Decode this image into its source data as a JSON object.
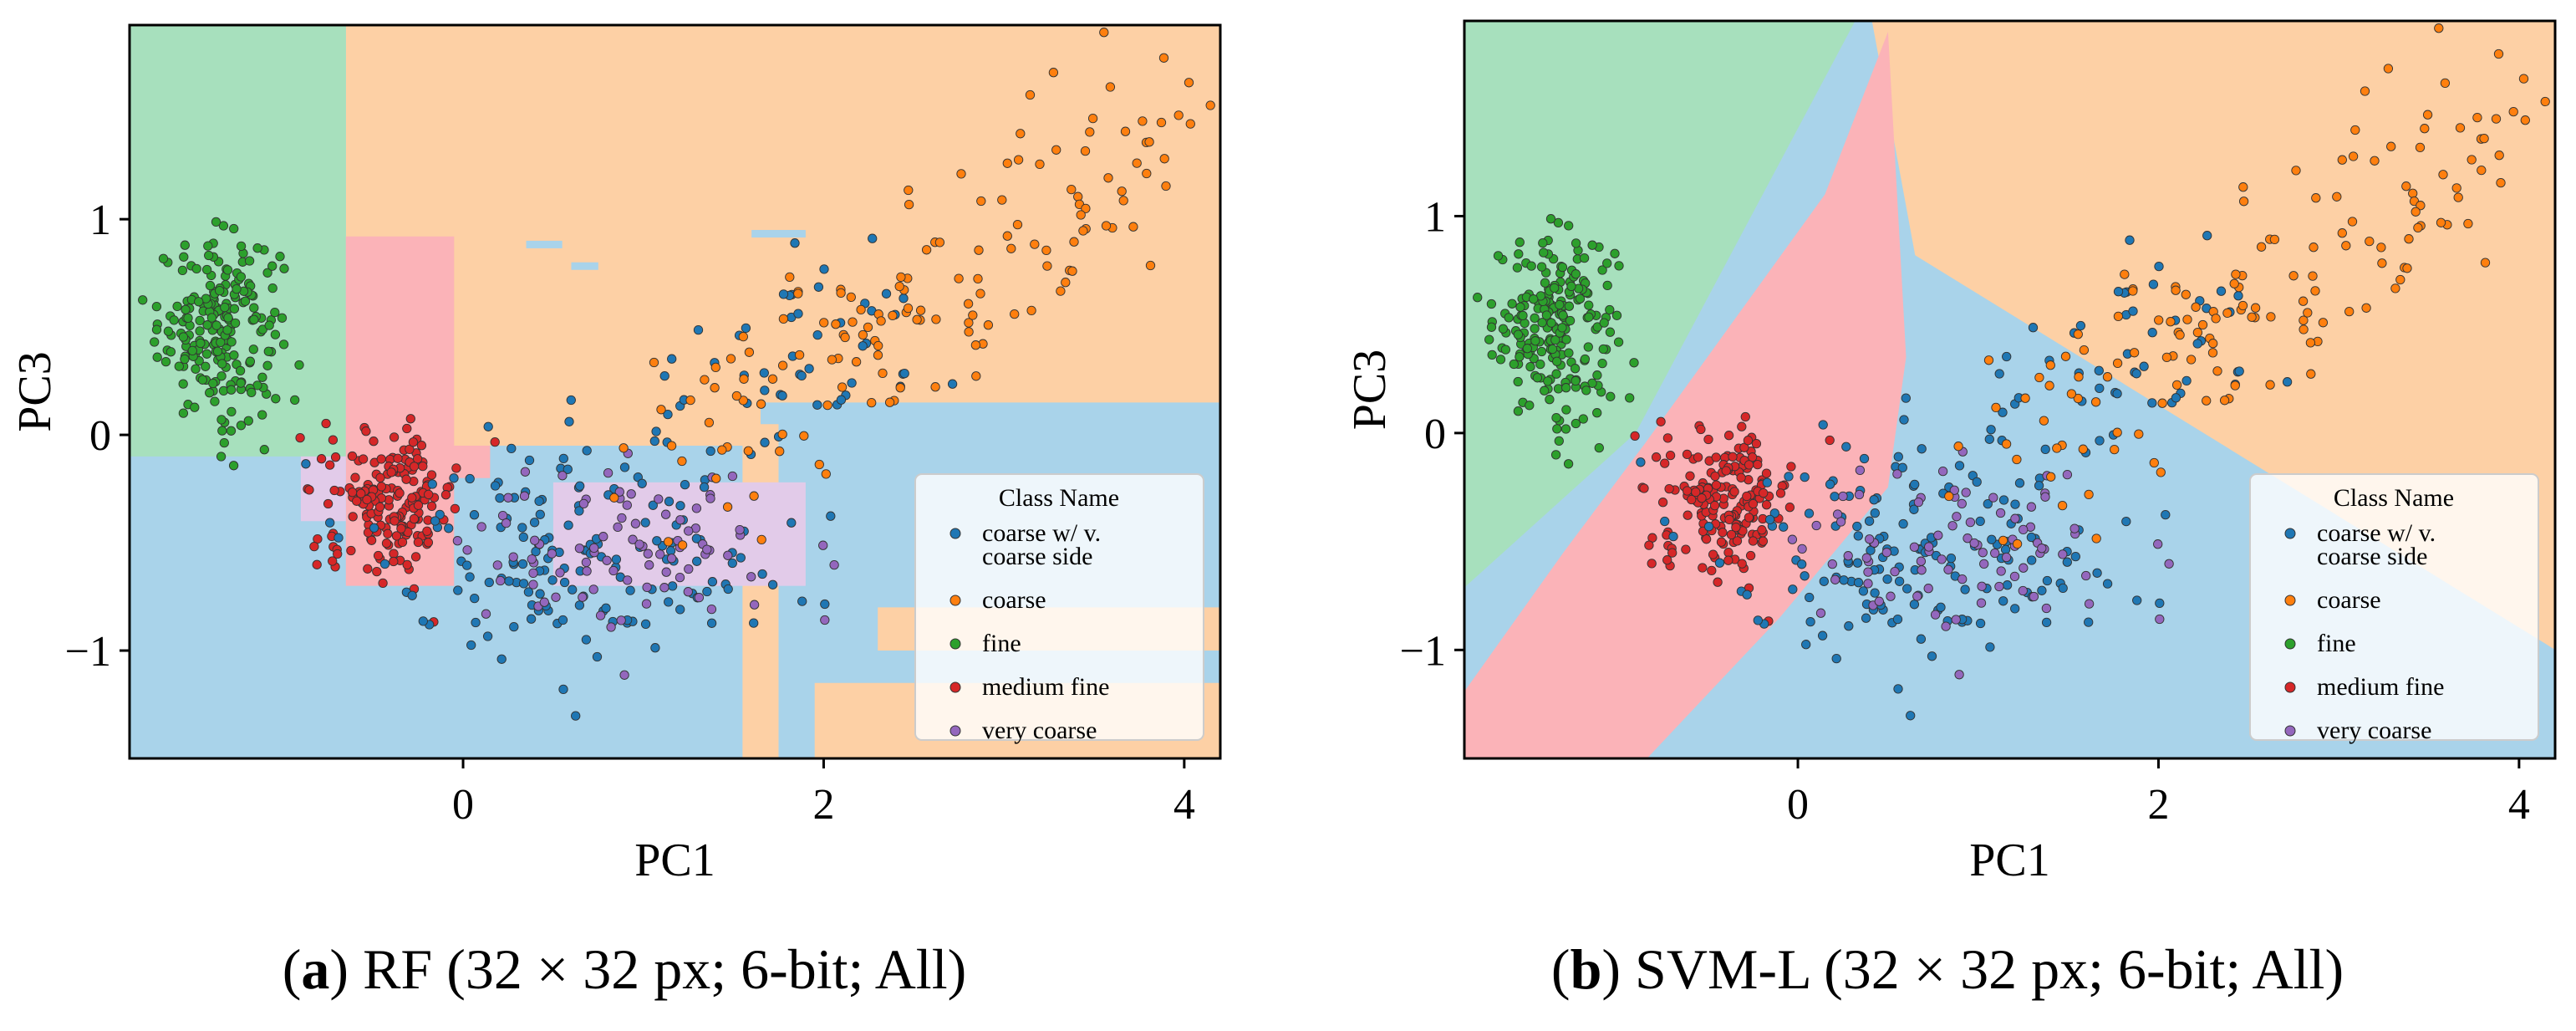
{
  "chart_data": [
    {
      "type": "scatter",
      "panel": "a",
      "xlabel": "PC1",
      "ylabel": "PC3",
      "xlim": [
        -1.85,
        4.2
      ],
      "ylim": [
        -1.5,
        1.9
      ],
      "xticks": [
        0,
        2,
        4
      ],
      "yticks": [
        -1,
        0,
        1
      ],
      "xtick_labels": [
        "0",
        "2",
        "4"
      ],
      "ytick_labels": [
        "−1",
        "0",
        "1"
      ],
      "background": "decision regions (RF)",
      "legend": {
        "title": "Class Name",
        "position": "bottom-right"
      }
    },
    {
      "type": "scatter",
      "panel": "b",
      "xlabel": "PC1",
      "ylabel": "PC3",
      "xlim": [
        -1.85,
        4.2
      ],
      "ylim": [
        -1.5,
        1.9
      ],
      "xticks": [
        0,
        2,
        4
      ],
      "yticks": [
        -1,
        0,
        1
      ],
      "xtick_labels": [
        "0",
        "2",
        "4"
      ],
      "ytick_labels": [
        "−1",
        "0",
        "1"
      ],
      "background": "decision regions (linear SVM)",
      "legend": {
        "title": "Class Name",
        "position": "bottom-right"
      }
    }
  ],
  "legend_entries": [
    {
      "key": "cvc",
      "lines": [
        "coarse w/ v.",
        "coarse side"
      ],
      "color": "#1f77b4"
    },
    {
      "key": "coarse",
      "lines": [
        "coarse"
      ],
      "color": "#ff7f0e"
    },
    {
      "key": "fine",
      "lines": [
        "fine"
      ],
      "color": "#2ca02c"
    },
    {
      "key": "medfine",
      "lines": [
        "medium fine"
      ],
      "color": "#d62728"
    },
    {
      "key": "vcoarse",
      "lines": [
        "very coarse"
      ],
      "color": "#9467bd"
    }
  ],
  "region_colors": {
    "cvc": "#a9d3ea",
    "coarse": "#fdd0a5",
    "fine": "#a7e0bd",
    "medfine": "#fbb3b8",
    "vcoarse": "#e2cbe9"
  },
  "clusters": {
    "fine": {
      "center": [
        -1.35,
        0.5
      ],
      "spread": [
        0.17,
        0.21
      ],
      "count": 220,
      "color": "#2ca02c"
    },
    "medfine": {
      "center": [
        -0.4,
        -0.3
      ],
      "spread": [
        0.19,
        0.16
      ],
      "count": 180,
      "color": "#d62728"
    },
    "cvc": {
      "center": [
        0.6,
        -0.55
      ],
      "spread": [
        0.55,
        0.28
      ],
      "count": 210,
      "color": "#1f77b4"
    },
    "coarse": {
      "center": [
        2.6,
        0.55
      ],
      "spread": [
        0.65,
        0.3
      ],
      "count": 150,
      "color": "#ff7f0e"
    },
    "vcoarse": {
      "center": [
        0.95,
        -0.55
      ],
      "spread": [
        0.45,
        0.22
      ],
      "count": 90,
      "color": "#9467bd"
    }
  },
  "captions": [
    {
      "letter": "a",
      "text": " RF (32 × 32 px; 6-bit; All)"
    },
    {
      "letter": "b",
      "text": " SVM-L (32 × 32 px; 6-bit; All)"
    }
  ]
}
